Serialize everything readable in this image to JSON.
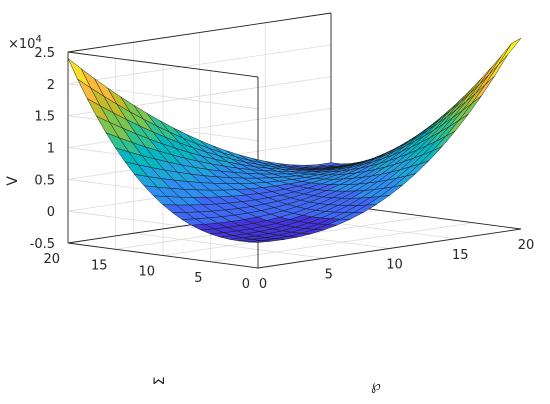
{
  "chart_data": {
    "type": "surface",
    "title": "",
    "xlabel": "℘",
    "ylabel": "Ʃ",
    "zlabel": "V",
    "z_multiplier_label": "×10",
    "z_multiplier_exponent": "4",
    "z_multiplier": 10000,
    "xlim": [
      0,
      20
    ],
    "ylim": [
      0,
      20
    ],
    "zlim": [
      -0.5,
      2.5
    ],
    "x_ticks": [
      "0",
      "5",
      "10",
      "15",
      "20"
    ],
    "y_ticks": [
      "0",
      "5",
      "10",
      "15",
      "20"
    ],
    "z_ticks": [
      "-0.5",
      "0",
      "0.5",
      "1",
      "1.5",
      "2",
      "2.5"
    ],
    "grid": true,
    "colormap": "parula",
    "colormap_stops": [
      "#3e26a8",
      "#4435dd",
      "#3f69f5",
      "#2d8ef0",
      "#1fa4db",
      "#08b6c2",
      "#31c18f",
      "#7cc551",
      "#c2bc2b",
      "#f6ba3c",
      "#fbde27",
      "#f9fb0e"
    ],
    "grid_points": 21,
    "surface_samples": [
      {
        "x": 0,
        "y": 20,
        "z": 2.4
      },
      {
        "x": 20,
        "y": 0,
        "z": 2.6
      },
      {
        "x": 0,
        "y": 0,
        "z": -0.1
      },
      {
        "x": 20,
        "y": 20,
        "z": 0.15
      },
      {
        "x": 10,
        "y": 10,
        "z": -0.35
      }
    ]
  }
}
